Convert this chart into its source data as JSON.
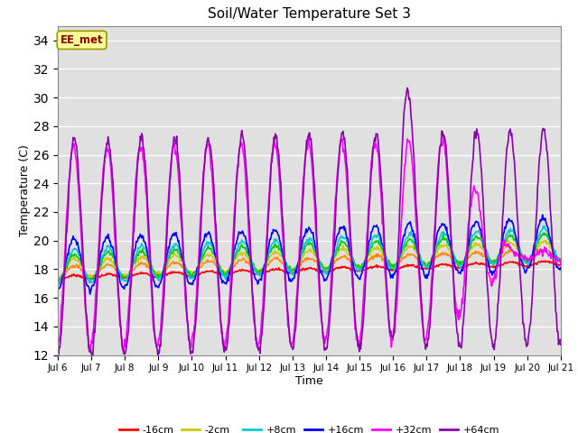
{
  "title": "Soil/Water Temperature Set 3",
  "xlabel": "Time",
  "ylabel": "Temperature (C)",
  "ylim": [
    12,
    35
  ],
  "yticks": [
    12,
    14,
    16,
    18,
    20,
    22,
    24,
    26,
    28,
    30,
    32,
    34
  ],
  "annotation": "EE_met",
  "annotation_color": "#8B0000",
  "annotation_bg": "#FFFF99",
  "annotation_edge": "#999900",
  "bg_color": "#E0E0E0",
  "series_colors": {
    "-16cm": "#FF0000",
    "-8cm": "#FF8C00",
    "-2cm": "#CCCC00",
    "+2cm": "#00CC00",
    "+8cm": "#00CCCC",
    "+16cm": "#0000FF",
    "+32cm": "#FF00FF",
    "+64cm": "#8800AA"
  },
  "start_day": 6,
  "end_day": 21
}
